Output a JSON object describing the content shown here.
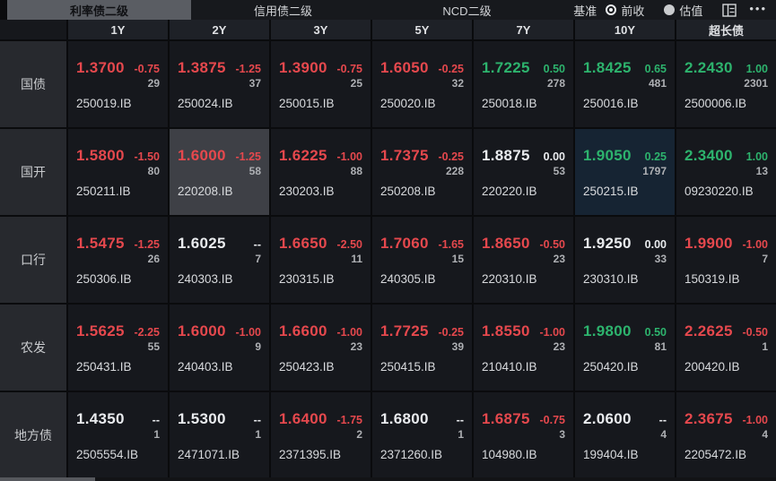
{
  "tabs": [
    {
      "label": "利率债二级",
      "selected": true
    },
    {
      "label": "信用债二级",
      "selected": false
    },
    {
      "label": "NCD二级",
      "selected": false
    }
  ],
  "benchmark": {
    "label": "基准",
    "options": [
      {
        "label": "前收",
        "selected": true
      },
      {
        "label": "估值",
        "selected": false
      }
    ]
  },
  "more_icon_glyph": "•••",
  "columns": [
    "1Y",
    "2Y",
    "3Y",
    "5Y",
    "7Y",
    "10Y",
    "超长债"
  ],
  "rows": [
    {
      "label": "国债",
      "cells": [
        {
          "yield": "1.3700",
          "change": "-0.75",
          "count": "29",
          "code": "250019.IB",
          "color": "down"
        },
        {
          "yield": "1.3875",
          "change": "-1.25",
          "count": "37",
          "code": "250024.IB",
          "color": "down"
        },
        {
          "yield": "1.3900",
          "change": "-0.75",
          "count": "25",
          "code": "250015.IB",
          "color": "down"
        },
        {
          "yield": "1.6050",
          "change": "-0.25",
          "count": "32",
          "code": "250020.IB",
          "color": "down"
        },
        {
          "yield": "1.7225",
          "change": "0.50",
          "count": "278",
          "code": "250018.IB",
          "color": "up"
        },
        {
          "yield": "1.8425",
          "change": "0.65",
          "count": "481",
          "code": "250016.IB",
          "color": "up"
        },
        {
          "yield": "2.2430",
          "change": "1.00",
          "count": "2301",
          "code": "2500006.IB",
          "color": "up"
        }
      ]
    },
    {
      "label": "国开",
      "cells": [
        {
          "yield": "1.5800",
          "change": "-1.50",
          "count": "80",
          "code": "250211.IB",
          "color": "down"
        },
        {
          "yield": "1.6000",
          "change": "-1.25",
          "count": "58",
          "code": "220208.IB",
          "color": "down",
          "highlight": "gray"
        },
        {
          "yield": "1.6225",
          "change": "-1.00",
          "count": "88",
          "code": "230203.IB",
          "color": "down"
        },
        {
          "yield": "1.7375",
          "change": "-0.25",
          "count": "228",
          "code": "250208.IB",
          "color": "down"
        },
        {
          "yield": "1.8875",
          "change": "0.00",
          "count": "53",
          "code": "220220.IB",
          "color": "flat"
        },
        {
          "yield": "1.9050",
          "change": "0.25",
          "count": "1797",
          "code": "250215.IB",
          "color": "up",
          "highlight": "blue"
        },
        {
          "yield": "2.3400",
          "change": "1.00",
          "count": "13",
          "code": "09230220.IB",
          "color": "up"
        }
      ]
    },
    {
      "label": "口行",
      "cells": [
        {
          "yield": "1.5475",
          "change": "-1.25",
          "count": "26",
          "code": "250306.IB",
          "color": "down"
        },
        {
          "yield": "1.6025",
          "change": "--",
          "count": "7",
          "code": "240303.IB",
          "color": "flat"
        },
        {
          "yield": "1.6650",
          "change": "-2.50",
          "count": "11",
          "code": "230315.IB",
          "color": "down"
        },
        {
          "yield": "1.7060",
          "change": "-1.65",
          "count": "15",
          "code": "240305.IB",
          "color": "down"
        },
        {
          "yield": "1.8650",
          "change": "-0.50",
          "count": "23",
          "code": "220310.IB",
          "color": "down"
        },
        {
          "yield": "1.9250",
          "change": "0.00",
          "count": "33",
          "code": "230310.IB",
          "color": "flat"
        },
        {
          "yield": "1.9900",
          "change": "-1.00",
          "count": "7",
          "code": "150319.IB",
          "color": "down"
        }
      ]
    },
    {
      "label": "农发",
      "cells": [
        {
          "yield": "1.5625",
          "change": "-2.25",
          "count": "55",
          "code": "250431.IB",
          "color": "down"
        },
        {
          "yield": "1.6000",
          "change": "-1.00",
          "count": "9",
          "code": "240403.IB",
          "color": "down"
        },
        {
          "yield": "1.6600",
          "change": "-1.00",
          "count": "23",
          "code": "250423.IB",
          "color": "down"
        },
        {
          "yield": "1.7725",
          "change": "-0.25",
          "count": "39",
          "code": "250415.IB",
          "color": "down"
        },
        {
          "yield": "1.8550",
          "change": "-1.00",
          "count": "23",
          "code": "210410.IB",
          "color": "down"
        },
        {
          "yield": "1.9800",
          "change": "0.50",
          "count": "81",
          "code": "250420.IB",
          "color": "up"
        },
        {
          "yield": "2.2625",
          "change": "-0.50",
          "count": "1",
          "code": "200420.IB",
          "color": "down"
        }
      ]
    },
    {
      "label": "地方债",
      "cells": [
        {
          "yield": "1.4350",
          "change": "--",
          "count": "1",
          "code": "2505554.IB",
          "color": "flat"
        },
        {
          "yield": "1.5300",
          "change": "--",
          "count": "1",
          "code": "2471071.IB",
          "color": "flat"
        },
        {
          "yield": "1.6400",
          "change": "-1.75",
          "count": "2",
          "code": "2371395.IB",
          "color": "down"
        },
        {
          "yield": "1.6800",
          "change": "--",
          "count": "1",
          "code": "2371260.IB",
          "color": "flat"
        },
        {
          "yield": "1.6875",
          "change": "-0.75",
          "count": "3",
          "code": "104980.IB",
          "color": "down"
        },
        {
          "yield": "2.0600",
          "change": "--",
          "count": "4",
          "code": "199404.IB",
          "color": "flat"
        },
        {
          "yield": "2.3675",
          "change": "-1.00",
          "count": "4",
          "code": "2205472.IB",
          "color": "down"
        }
      ]
    }
  ],
  "colors": {
    "up": "#2db36d",
    "down": "#e5484d",
    "flat": "#e9ebee",
    "count": "#aeb0b4",
    "code": "#d8dadd",
    "tab_selected_bg": "#5a5d63",
    "hl_gray": "#3e4046",
    "hl_blue": "#162433"
  }
}
